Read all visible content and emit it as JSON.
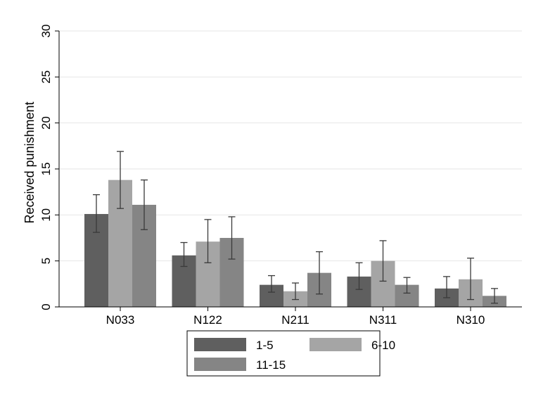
{
  "chart_data": {
    "type": "bar",
    "title": "",
    "xlabel": "",
    "ylabel": "Received punishment",
    "ylim": [
      0,
      30
    ],
    "yticks": [
      0,
      5,
      10,
      15,
      20,
      25,
      30
    ],
    "grid": true,
    "legend_position": "bottom",
    "categories": [
      "N033",
      "N122",
      "N211",
      "N311",
      "N310"
    ],
    "series": [
      {
        "name": "1-5",
        "color": "#5f5f5f",
        "values": [
          10.1,
          5.6,
          2.4,
          3.3,
          2.0
        ],
        "err_low": [
          8.1,
          4.4,
          1.6,
          1.9,
          1.0
        ],
        "err_high": [
          12.2,
          7.0,
          3.4,
          4.8,
          3.3
        ]
      },
      {
        "name": "6-10",
        "color": "#a5a5a5",
        "values": [
          13.8,
          7.1,
          1.7,
          5.0,
          3.0
        ],
        "err_low": [
          10.7,
          4.8,
          0.8,
          2.8,
          0.8
        ],
        "err_high": [
          16.9,
          9.5,
          2.6,
          7.2,
          5.3
        ]
      },
      {
        "name": "11-15",
        "color": "#858585",
        "values": [
          11.1,
          7.5,
          3.7,
          2.4,
          1.2
        ],
        "err_low": [
          8.4,
          5.2,
          1.4,
          1.5,
          0.4
        ],
        "err_high": [
          13.8,
          9.8,
          6.0,
          3.2,
          2.0
        ]
      }
    ]
  }
}
